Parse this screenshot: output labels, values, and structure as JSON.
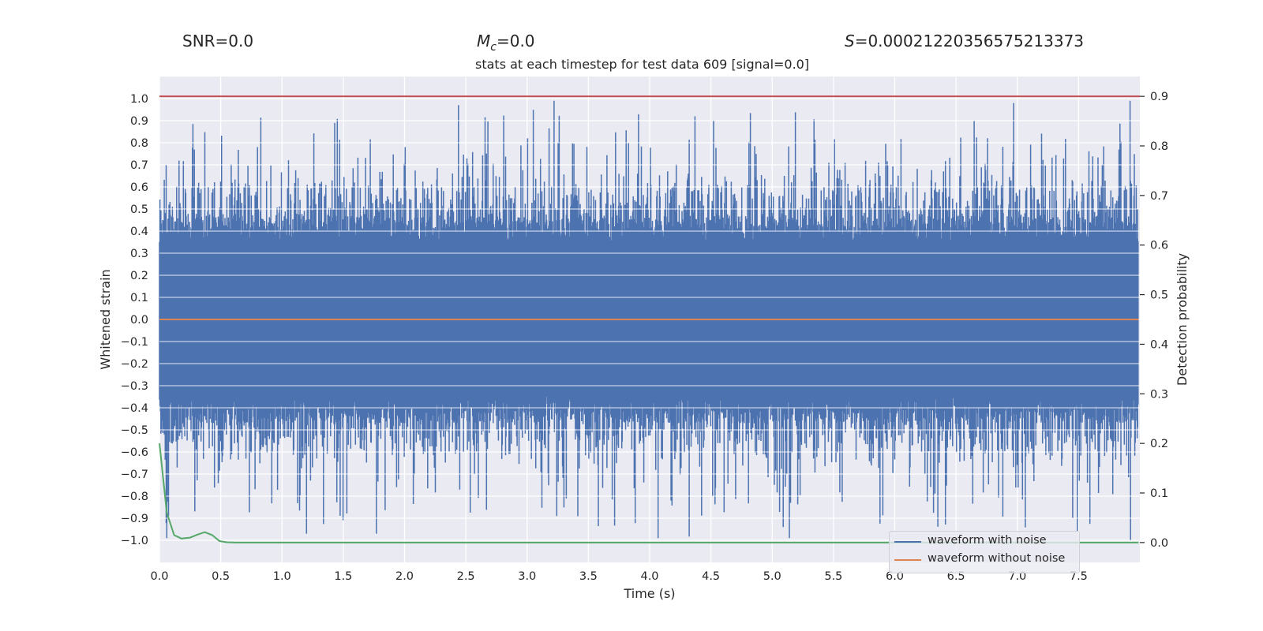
{
  "header": {
    "snr_text": "SNR=0.0",
    "mc_symbol": "M",
    "mc_subscript": "c",
    "mc_value": "=0.0",
    "s_symbol": "S",
    "s_value": "=0.00021220356575213373"
  },
  "chart_data": {
    "type": "line",
    "title": "stats at each timestep for test data 609 [signal=0.0]",
    "xlabel": "Time (s)",
    "ylabel": "Whitened strain",
    "y2label": "Detection probability",
    "xlim": [
      0,
      8
    ],
    "ylim": [
      -1.1,
      1.1
    ],
    "y2lim": [
      -0.04,
      0.94
    ],
    "xticks": [
      "0.0",
      "0.5",
      "1.0",
      "1.5",
      "2.0",
      "2.5",
      "3.0",
      "3.5",
      "4.0",
      "4.5",
      "5.0",
      "5.5",
      "6.0",
      "6.5",
      "7.0",
      "7.5"
    ],
    "yticks": [
      "1.0",
      "0.9",
      "0.8",
      "0.7",
      "0.6",
      "0.5",
      "0.4",
      "0.3",
      "0.2",
      "0.1",
      "0.0",
      "−0.1",
      "−0.2",
      "−0.3",
      "−0.4",
      "−0.5",
      "−0.6",
      "−0.7",
      "−0.8",
      "−0.9",
      "−1.0"
    ],
    "y2ticks": [
      "0.9",
      "0.8",
      "0.7",
      "0.6",
      "0.5",
      "0.4",
      "0.3",
      "0.2",
      "0.1",
      "0.0"
    ],
    "grid": true,
    "legend_position": "lower-right",
    "threshold": {
      "value": 0.9,
      "axis": "y2",
      "color": "#c44e52"
    },
    "series": [
      {
        "name": "waveform with noise",
        "axis": "y",
        "color": "#4c72b0",
        "style": "dense-noise",
        "t_end": 7.99,
        "samples": 2048,
        "noise_core_amplitude": 0.35,
        "noise_peak_max": 1.0,
        "noise_peak_min": -1.0
      },
      {
        "name": "waveform without noise",
        "axis": "y",
        "color": "#dd8452",
        "x": [
          0,
          7.99
        ],
        "values": [
          0,
          0
        ]
      },
      {
        "name": "",
        "axis": "y2",
        "color": "#55a868",
        "x": [
          0.0,
          0.06,
          0.12,
          0.18,
          0.25,
          0.31,
          0.37,
          0.43,
          0.49,
          0.55,
          0.62,
          0.7,
          1.0,
          2.0,
          3.0,
          4.0,
          5.0,
          6.0,
          7.0,
          7.99
        ],
        "values": [
          0.2,
          0.06,
          0.015,
          0.008,
          0.01,
          0.016,
          0.021,
          0.015,
          0.003,
          0.0005,
          0.0,
          0.0,
          0.0,
          0.0,
          0.0,
          0.0,
          0.0,
          0.0,
          0.0,
          0.0
        ]
      }
    ]
  }
}
